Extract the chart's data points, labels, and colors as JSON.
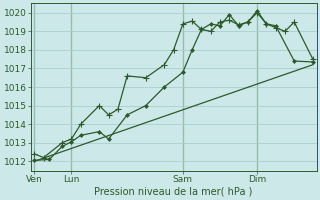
{
  "bg_color": "#cde8e8",
  "grid_color": "#a8cece",
  "line_color": "#2d5a2d",
  "marker_color": "#2d5a2d",
  "xlabel": "Pression niveau de la mer( hPa )",
  "ylim": [
    1011.5,
    1020.5
  ],
  "yticks": [
    1012,
    1013,
    1014,
    1015,
    1016,
    1017,
    1018,
    1019,
    1020
  ],
  "xtick_labels": [
    "Ven",
    "Lun",
    "Sam",
    "Dim"
  ],
  "xtick_pos": [
    0,
    2,
    8,
    12
  ],
  "vline_pos": [
    0,
    2,
    8,
    12
  ],
  "xlim": [
    -0.2,
    15.2
  ],
  "series1_x": [
    0,
    0.5,
    1.5,
    2,
    2.5,
    3.5,
    4,
    4.5,
    5,
    6,
    7,
    7.5,
    8,
    8.5,
    9,
    9.5,
    10,
    10.5,
    11,
    11.5,
    12,
    12.5,
    13,
    13.5,
    14,
    15
  ],
  "series1_y": [
    1012.4,
    1012.2,
    1013.0,
    1013.2,
    1014.0,
    1015.0,
    1014.5,
    1014.8,
    1016.6,
    1016.5,
    1017.2,
    1018.0,
    1019.4,
    1019.55,
    1019.1,
    1019.0,
    1019.5,
    1019.6,
    1019.35,
    1019.5,
    1020.0,
    1019.4,
    1019.2,
    1019.0,
    1019.5,
    1017.5
  ],
  "series2_x": [
    0,
    0.8,
    1.5,
    2,
    2.5,
    3.5,
    4,
    5,
    6,
    7,
    8,
    8.5,
    9,
    9.5,
    10,
    10.5,
    11,
    11.5,
    12,
    12.5,
    13,
    14,
    15
  ],
  "series2_y": [
    1012.05,
    1012.1,
    1012.8,
    1013.05,
    1013.4,
    1013.6,
    1013.2,
    1014.5,
    1015.0,
    1016.0,
    1016.8,
    1018.0,
    1019.1,
    1019.4,
    1019.3,
    1019.9,
    1019.3,
    1019.5,
    1020.1,
    1019.4,
    1019.3,
    1017.4,
    1017.35
  ],
  "series3_x": [
    0,
    15
  ],
  "series3_y": [
    1012.0,
    1017.2
  ],
  "figsize": [
    3.2,
    2.0
  ],
  "dpi": 100
}
